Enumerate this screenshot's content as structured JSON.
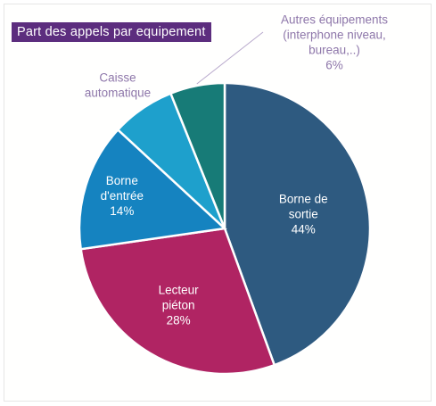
{
  "chart_data": {
    "type": "pie",
    "title": "Part des appels par equipement",
    "slices": [
      {
        "name": "Borne de sortie",
        "value": 44,
        "label_lines": [
          "Borne de",
          "sortie",
          "44%"
        ],
        "color": "#2e5a80"
      },
      {
        "name": "Lecteur piéton",
        "value": 28,
        "label_lines": [
          "Lecteur",
          "piéton",
          "28%"
        ],
        "color": "#b02463"
      },
      {
        "name": "Borne d'entrée",
        "value": 14,
        "label_lines": [
          "Borne",
          "d'entrée",
          "14%"
        ],
        "color": "#1583c0"
      },
      {
        "name": "Caisse automatique",
        "value": 7,
        "label_lines": [
          "Caisse",
          "automatique"
        ],
        "color": "#1ea0cc"
      },
      {
        "name": "Autres équipements (interphone niveau, bureau,...)",
        "value": 6,
        "label_lines": [
          "Autres équipements",
          "(interphone niveau,",
          "bureau,..)",
          "6%"
        ],
        "color": "#177b77"
      }
    ],
    "label_colors": {
      "inside": "#ffffff",
      "outside": "#8e77aa"
    }
  }
}
